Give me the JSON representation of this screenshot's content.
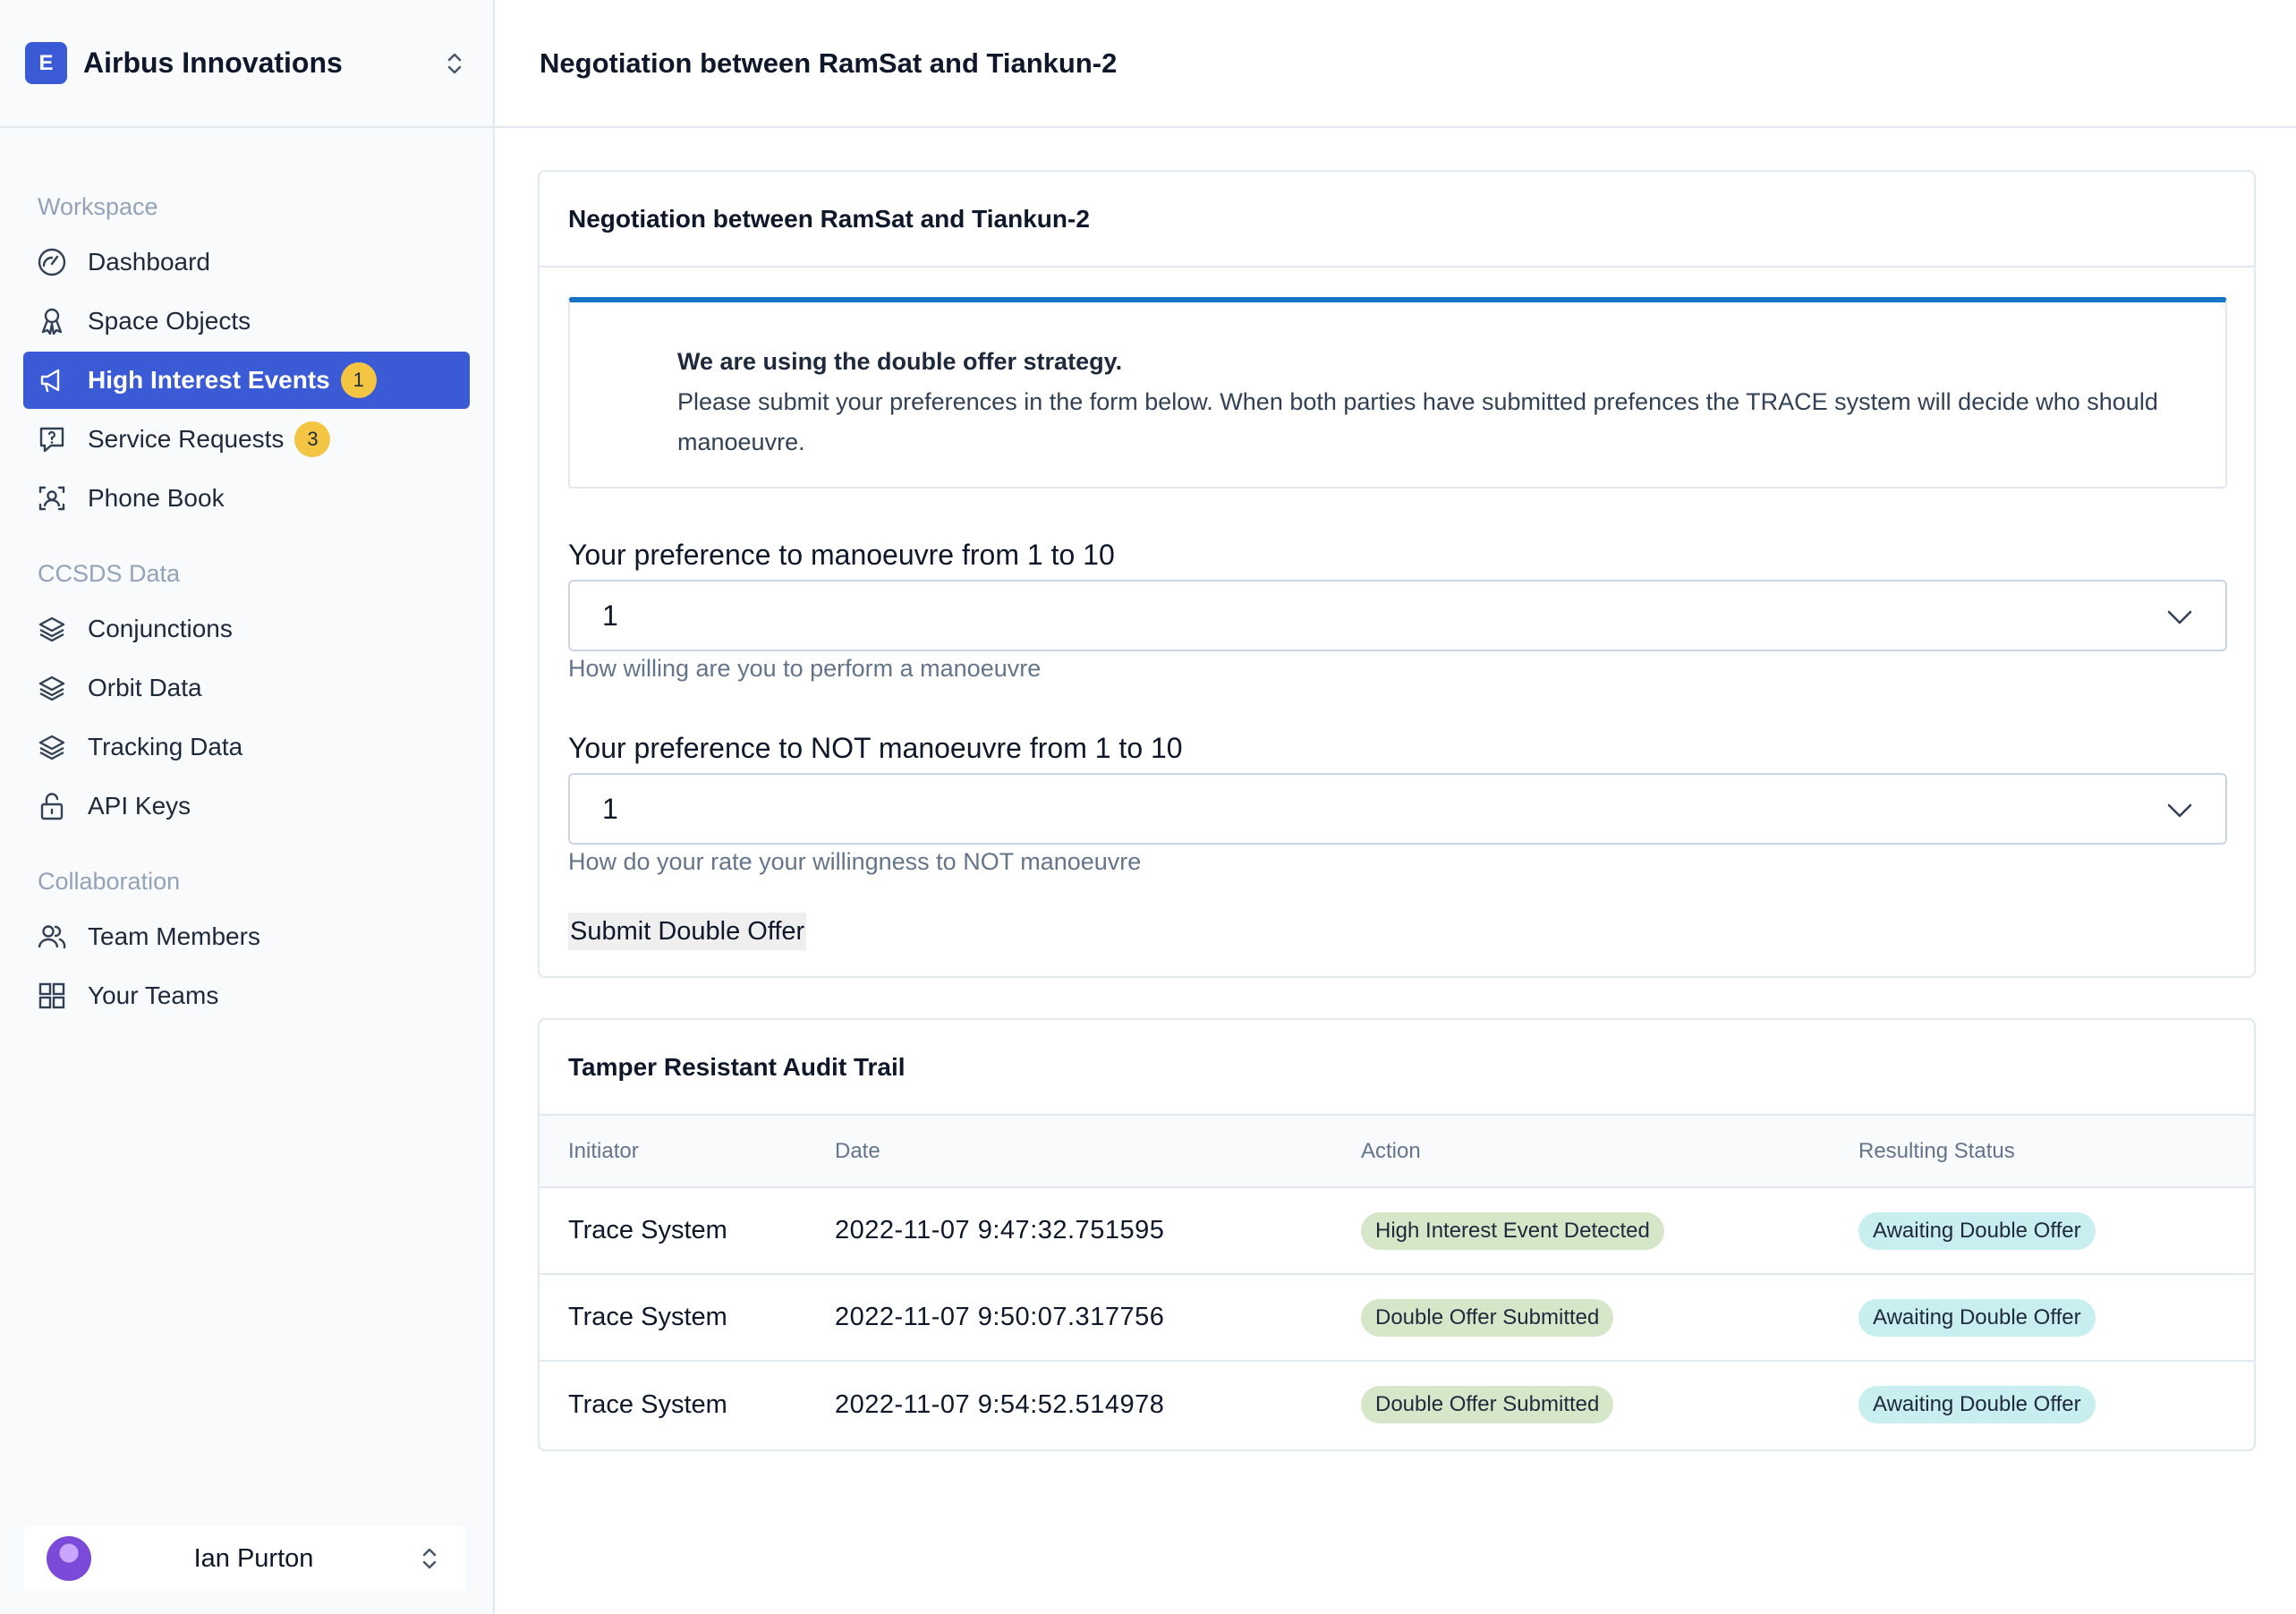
{
  "org": {
    "logo_letter": "E",
    "name": "Airbus Innovations"
  },
  "nav": {
    "workspace_label": "Workspace",
    "dashboard": "Dashboard",
    "space_objects": "Space Objects",
    "high_interest_events": "High Interest Events",
    "high_interest_events_badge": "1",
    "service_requests": "Service Requests",
    "service_requests_badge": "3",
    "phone_book": "Phone Book",
    "ccsds_label": "CCSDS Data",
    "conjunctions": "Conjunctions",
    "orbit_data": "Orbit Data",
    "tracking_data": "Tracking Data",
    "api_keys": "API Keys",
    "collaboration_label": "Collaboration",
    "team_members": "Team Members",
    "your_teams": "Your Teams"
  },
  "user": {
    "name": "Ian Purton"
  },
  "page": {
    "title": "Negotiation between RamSat and Tiankun-2"
  },
  "negotiation": {
    "title": "Negotiation between RamSat and Tiankun-2",
    "info_heading": "We are using the double offer strategy.",
    "info_text": "Please submit your preferences in the form below. When both parties have submitted prefences the TRACE system will decide who should manoeuvre.",
    "field1_label": "Your preference to manoeuvre from 1 to 10",
    "field1_value": "1",
    "field1_help": "How willing are you to perform a manoeuvre",
    "field2_label": "Your preference to NOT manoeuvre from 1 to 10",
    "field2_value": "1",
    "field2_help": "How do your rate your willingness to NOT manoeuvre",
    "submit_label": "Submit Double Offer"
  },
  "audit": {
    "title": "Tamper Resistant Audit Trail",
    "columns": [
      "Initiator",
      "Date",
      "Action",
      "Resulting Status"
    ],
    "rows": [
      {
        "initiator": "Trace System",
        "date": "2022-11-07 9:47:32.751595",
        "action": "High Interest Event Detected",
        "status": "Awaiting Double Offer"
      },
      {
        "initiator": "Trace System",
        "date": "2022-11-07 9:50:07.317756",
        "action": "Double Offer Submitted",
        "status": "Awaiting Double Offer"
      },
      {
        "initiator": "Trace System",
        "date": "2022-11-07 9:54:52.514978",
        "action": "Double Offer Submitted",
        "status": "Awaiting Double Offer"
      }
    ]
  },
  "colors": {
    "primary": "#3b5bd6",
    "badge": "#f4c542",
    "info_accent": "#1673c7",
    "action_pill": "#d6e6c9",
    "status_pill": "#c8eef0"
  }
}
